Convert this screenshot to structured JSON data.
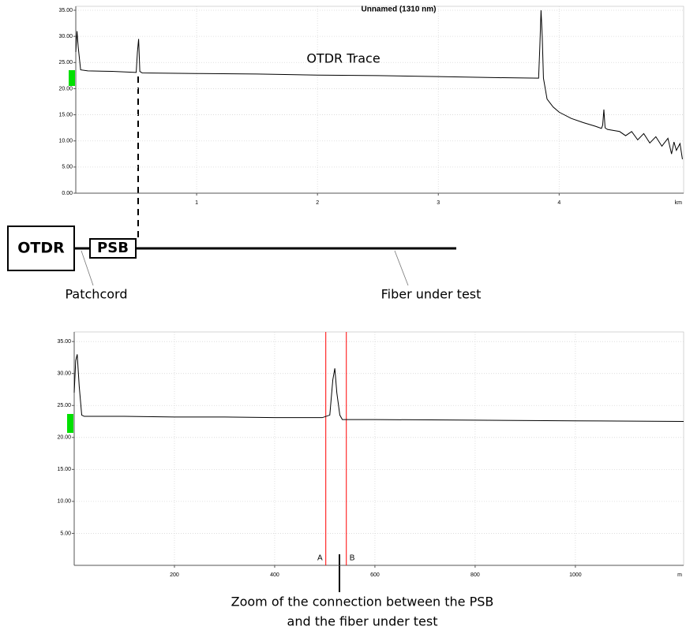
{
  "chart_data": [
    {
      "type": "line",
      "title": "Unnamed (1310 nm)",
      "annotation": "OTDR Trace",
      "x_label": "km",
      "x": [
        0,
        0.01,
        0.02,
        0.04,
        0.1,
        0.3,
        0.5,
        0.51,
        0.52,
        0.53,
        0.55,
        1.0,
        1.5,
        2.0,
        2.5,
        3.0,
        3.5,
        3.83,
        3.84,
        3.85,
        3.86,
        3.87,
        3.9,
        3.95,
        4.0,
        4.1,
        4.2,
        4.3,
        4.35,
        4.36,
        4.37,
        4.38,
        4.4,
        4.5,
        4.55,
        4.6,
        4.65,
        4.7,
        4.75,
        4.8,
        4.85,
        4.9,
        4.93,
        4.95,
        4.97,
        5.0,
        5.02
      ],
      "series": [
        {
          "color": "#000000",
          "values": [
            27,
            31,
            28,
            23.6,
            23.4,
            23.3,
            23.1,
            27,
            29.5,
            23.3,
            23.0,
            22.9,
            22.8,
            22.6,
            22.5,
            22.3,
            22.1,
            22.0,
            28,
            35,
            30,
            22,
            18,
            16.5,
            15.5,
            14.3,
            13.5,
            12.8,
            12.4,
            13,
            16,
            12.5,
            12.2,
            11.8,
            11.0,
            11.8,
            10.2,
            11.4,
            9.6,
            10.8,
            9.0,
            10.5,
            7.5,
            9.8,
            8.2,
            9.5,
            6.5
          ]
        }
      ],
      "xlim": [
        0,
        5.03
      ],
      "ylim": [
        0,
        35
      ],
      "xticks": [
        1,
        2,
        3,
        4
      ],
      "yticks": [
        {
          "value": 0,
          "label": "0.00"
        },
        {
          "value": 5,
          "label": "5.00"
        },
        {
          "value": 10,
          "label": "10.00"
        },
        {
          "value": 15,
          "label": "15.00"
        },
        {
          "value": 20,
          "label": "20.00"
        },
        {
          "value": 25,
          "label": "25.00"
        },
        {
          "value": 30,
          "label": "30.00"
        },
        {
          "value": 35,
          "label": "35.00"
        }
      ],
      "grid": true
    },
    {
      "type": "line",
      "x_label": "m",
      "x": [
        0,
        3,
        6,
        10,
        15,
        20,
        100,
        200,
        300,
        400,
        495,
        510,
        516,
        520,
        524,
        530,
        535,
        600,
        800,
        1000,
        1216
      ],
      "series": [
        {
          "color": "#000000",
          "values": [
            27,
            32,
            33,
            28,
            23.5,
            23.3,
            23.3,
            23.2,
            23.2,
            23.1,
            23.1,
            23.5,
            29,
            30.8,
            27,
            23.5,
            22.8,
            22.8,
            22.7,
            22.6,
            22.5
          ]
        }
      ],
      "cursors": [
        {
          "label": "A",
          "x": 502,
          "color": "#ff0000"
        },
        {
          "label": "B",
          "x": 543,
          "color": "#ff0000"
        }
      ],
      "xlim": [
        0,
        1216
      ],
      "ylim": [
        0,
        36.5
      ],
      "xticks": [
        200,
        400,
        600,
        800,
        1000
      ],
      "yticks": [
        {
          "value": 5,
          "label": "5.00"
        },
        {
          "value": 10,
          "label": "10.00"
        },
        {
          "value": 15,
          "label": "15.00"
        },
        {
          "value": 20,
          "label": "20.00"
        },
        {
          "value": 25,
          "label": "25.00"
        },
        {
          "value": 30,
          "label": "30.00"
        },
        {
          "value": 35,
          "label": "35.00"
        }
      ],
      "grid": true
    }
  ],
  "diagram": {
    "otdr": "OTDR",
    "psb": "PSB",
    "patchcord": "Patchcord",
    "fiber": "Fiber under test",
    "caption": [
      "Zoom of the connection between the PSB",
      "and the fiber under test"
    ]
  }
}
